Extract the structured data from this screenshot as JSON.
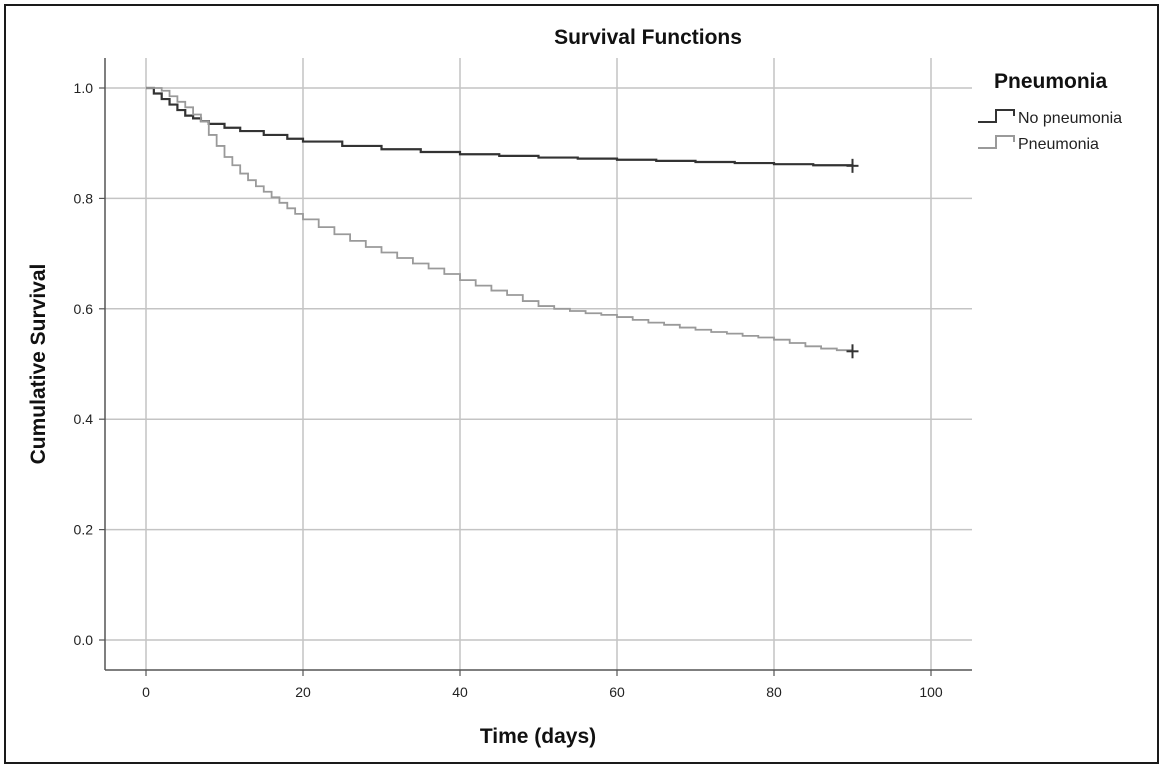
{
  "chart_data": {
    "type": "line",
    "title": "Survival Functions",
    "xlabel": "Time (days)",
    "ylabel": "Cumulative Survival",
    "xlim": [
      -5,
      105
    ],
    "ylim": [
      -0.03,
      1.05
    ],
    "xticks": [
      0,
      20,
      40,
      60,
      80,
      100
    ],
    "xtick_labels": [
      "0",
      "20",
      "40",
      "60",
      "80",
      "100"
    ],
    "yticks": [
      0.0,
      0.2,
      0.4,
      0.6,
      0.8,
      1.0
    ],
    "ytick_labels": [
      "0.0",
      "0.2",
      "0.4",
      "0.6",
      "0.8",
      "1.0"
    ],
    "grid": true,
    "legend_title": "Pneumonia",
    "legend_position": "right",
    "step": true,
    "series": [
      {
        "name": "No pneumonia",
        "color": "#333333",
        "censored_at": 90,
        "x": [
          0,
          1,
          2,
          3,
          4,
          5,
          6,
          7,
          8,
          10,
          12,
          15,
          18,
          20,
          25,
          30,
          35,
          40,
          45,
          50,
          55,
          60,
          65,
          70,
          75,
          80,
          85,
          90
        ],
        "y": [
          1.0,
          0.99,
          0.98,
          0.97,
          0.96,
          0.95,
          0.945,
          0.94,
          0.935,
          0.928,
          0.922,
          0.915,
          0.908,
          0.903,
          0.895,
          0.889,
          0.884,
          0.88,
          0.877,
          0.874,
          0.872,
          0.87,
          0.868,
          0.866,
          0.864,
          0.862,
          0.86,
          0.859
        ]
      },
      {
        "name": "Pneumonia",
        "color": "#9a9a9a",
        "censored_at": 90,
        "x": [
          0,
          1,
          2,
          3,
          4,
          5,
          6,
          7,
          8,
          9,
          10,
          11,
          12,
          13,
          14,
          15,
          16,
          17,
          18,
          19,
          20,
          22,
          24,
          26,
          28,
          30,
          32,
          34,
          36,
          38,
          40,
          42,
          44,
          46,
          48,
          50,
          52,
          54,
          56,
          58,
          60,
          62,
          64,
          66,
          68,
          70,
          72,
          74,
          76,
          78,
          80,
          82,
          84,
          86,
          88,
          90
        ],
        "y": [
          1.0,
          1.0,
          0.995,
          0.985,
          0.975,
          0.965,
          0.952,
          0.94,
          0.915,
          0.895,
          0.875,
          0.86,
          0.845,
          0.833,
          0.822,
          0.812,
          0.802,
          0.792,
          0.782,
          0.772,
          0.762,
          0.748,
          0.735,
          0.723,
          0.712,
          0.702,
          0.692,
          0.682,
          0.673,
          0.663,
          0.652,
          0.642,
          0.633,
          0.625,
          0.614,
          0.605,
          0.6,
          0.596,
          0.592,
          0.589,
          0.585,
          0.58,
          0.575,
          0.571,
          0.566,
          0.562,
          0.558,
          0.555,
          0.551,
          0.548,
          0.544,
          0.538,
          0.532,
          0.528,
          0.525,
          0.523
        ]
      }
    ]
  }
}
